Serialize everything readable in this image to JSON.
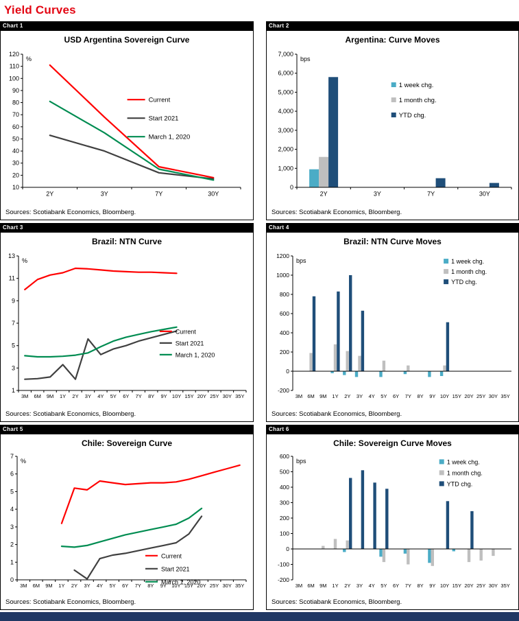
{
  "page_title": "Yield Curves",
  "title_color": "#E30613",
  "footer_color": "#203864",
  "charts": [
    {
      "tag": "Chart 1",
      "title": "USD Argentina Sovereign Curve",
      "source": "Sources: Scotiabank Economics, Bloomberg.",
      "chart_data": {
        "type": "line",
        "unit": "%",
        "categories": [
          "2Y",
          "3Y",
          "7Y",
          "30Y"
        ],
        "ylim": [
          10,
          120
        ],
        "ystep": 10,
        "legend_position": "middle-right",
        "series": [
          {
            "name": "Current",
            "color": "#FF0000",
            "values": [
              111,
              68,
              27,
              18
            ]
          },
          {
            "name": "Start 2021",
            "color": "#404040",
            "values": [
              53,
              40,
              22,
              17
            ]
          },
          {
            "name": "March 1, 2020",
            "color": "#008C51",
            "values": [
              81,
              55,
              25,
              16
            ]
          }
        ]
      }
    },
    {
      "tag": "Chart 2",
      "title": "Argentina: Curve Moves",
      "source": "Sources: Scotiabank Economics, Bloomberg.",
      "chart_data": {
        "type": "bar",
        "unit": "bps",
        "categories": [
          "2Y",
          "3Y",
          "7Y",
          "30Y"
        ],
        "ylim": [
          0,
          7000
        ],
        "ystep": 1000,
        "comma": true,
        "legend_position": "upper-right",
        "series": [
          {
            "name": "1 week chg.",
            "color": "#4BACC6",
            "values": [
              950,
              0,
              0,
              0
            ]
          },
          {
            "name": "1 month chg.",
            "color": "#BFBFBF",
            "values": [
              1600,
              0,
              0,
              0
            ]
          },
          {
            "name": "YTD chg.",
            "color": "#1F4E79",
            "values": [
              5800,
              0,
              480,
              230
            ]
          }
        ]
      }
    },
    {
      "tag": "Chart 3",
      "title": "Brazil: NTN Curve",
      "source": "Sources: Scotiabank Economics, Bloomberg.",
      "chart_data": {
        "type": "line",
        "unit": "%",
        "categories": [
          "3M",
          "6M",
          "9M",
          "1Y",
          "2Y",
          "3Y",
          "4Y",
          "5Y",
          "6Y",
          "7Y",
          "8Y",
          "9Y",
          "10Y",
          "15Y",
          "20Y",
          "25Y",
          "30Y",
          "35Y"
        ],
        "ylim": [
          1,
          13
        ],
        "ystep": 2,
        "legend_position": "middle-right",
        "series": [
          {
            "name": "Current",
            "color": "#FF0000",
            "values": [
              10.0,
              10.9,
              11.3,
              11.5,
              11.9,
              11.85,
              11.75,
              11.65,
              11.6,
              11.55,
              11.55,
              11.5,
              11.45,
              null,
              null,
              null,
              null,
              null
            ]
          },
          {
            "name": "Start 2021",
            "color": "#404040",
            "values": [
              2.0,
              2.05,
              2.2,
              3.3,
              2.0,
              5.6,
              4.2,
              4.7,
              5.0,
              5.4,
              5.7,
              6.0,
              6.3,
              null,
              null,
              null,
              null,
              null
            ]
          },
          {
            "name": "March 1, 2020",
            "color": "#008C51",
            "values": [
              4.1,
              4.0,
              4.0,
              4.05,
              4.15,
              4.35,
              4.9,
              5.4,
              5.75,
              6.0,
              6.25,
              6.45,
              6.65,
              null,
              null,
              null,
              null,
              null
            ]
          }
        ]
      }
    },
    {
      "tag": "Chart 4",
      "title": "Brazil: NTN Curve Moves",
      "source": "Sources: Scotiabank Economics, Bloomberg.",
      "chart_data": {
        "type": "bar",
        "unit": "bps",
        "categories": [
          "3M",
          "6M",
          "9M",
          "1Y",
          "2Y",
          "3Y",
          "4Y",
          "5Y",
          "6Y",
          "7Y",
          "8Y",
          "9Y",
          "10Y",
          "15Y",
          "20Y",
          "25Y",
          "30Y",
          "35Y"
        ],
        "ylim": [
          -200,
          1200
        ],
        "ystep": 200,
        "comma": false,
        "legend_position": "upper-right",
        "series": [
          {
            "name": "1 week chg.",
            "color": "#4BACC6",
            "values": [
              0,
              0,
              0,
              -20,
              -40,
              -60,
              0,
              -60,
              0,
              -30,
              0,
              -60,
              -50,
              0,
              0,
              0,
              0,
              0
            ]
          },
          {
            "name": "1 month chg.",
            "color": "#BFBFBF",
            "values": [
              0,
              190,
              0,
              280,
              210,
              160,
              0,
              110,
              0,
              60,
              0,
              0,
              60,
              0,
              0,
              0,
              0,
              0
            ]
          },
          {
            "name": "YTD chg.",
            "color": "#1F4E79",
            "values": [
              0,
              780,
              0,
              830,
              1000,
              630,
              0,
              0,
              0,
              0,
              0,
              0,
              510,
              0,
              0,
              0,
              0,
              0
            ]
          }
        ]
      }
    },
    {
      "tag": "Chart 5",
      "title": "Chile: Sovereign Curve",
      "source": "Sources: Scotiabank Economics, Bloomberg.",
      "chart_data": {
        "type": "line",
        "unit": "%",
        "categories": [
          "3M",
          "6M",
          "9M",
          "1Y",
          "2Y",
          "3Y",
          "4Y",
          "5Y",
          "6Y",
          "7Y",
          "8Y",
          "9Y",
          "10Y",
          "15Y",
          "20Y",
          "25Y",
          "30Y",
          "35Y"
        ],
        "ylim": [
          0,
          7
        ],
        "ystep": 1,
        "legend_position": "lower-right",
        "series": [
          {
            "name": "Current",
            "color": "#FF0000",
            "values": [
              null,
              null,
              null,
              3.2,
              5.2,
              5.1,
              5.6,
              5.5,
              5.4,
              5.45,
              5.5,
              5.5,
              5.55,
              5.7,
              5.9,
              6.1,
              6.3,
              6.5
            ]
          },
          {
            "name": "Start 2021",
            "color": "#404040",
            "values": [
              null,
              null,
              null,
              null,
              0.55,
              0.05,
              1.2,
              1.4,
              1.5,
              1.65,
              1.8,
              1.95,
              2.1,
              2.6,
              3.6,
              null,
              null,
              null
            ]
          },
          {
            "name": "March 1, 2020",
            "color": "#008C51",
            "values": [
              null,
              null,
              null,
              1.9,
              1.85,
              1.95,
              2.15,
              2.35,
              2.55,
              2.7,
              2.85,
              3.0,
              3.15,
              3.5,
              4.05,
              null,
              null,
              null
            ]
          }
        ]
      }
    },
    {
      "tag": "Chart 6",
      "title": "Chile: Sovereign Curve Moves",
      "source": "Sources: Scotiabank Economics, Bloomberg.",
      "chart_data": {
        "type": "bar",
        "unit": "bps",
        "categories": [
          "3M",
          "6M",
          "9M",
          "1Y",
          "2Y",
          "3Y",
          "4Y",
          "5Y",
          "6Y",
          "7Y",
          "8Y",
          "9Y",
          "10Y",
          "15Y",
          "20Y",
          "25Y",
          "30Y",
          "35Y"
        ],
        "ylim": [
          -200,
          600
        ],
        "ystep": 100,
        "comma": false,
        "legend_position": "upper-right",
        "series": [
          {
            "name": "1 week chg.",
            "color": "#4BACC6",
            "values": [
              0,
              0,
              0,
              0,
              -20,
              0,
              0,
              -50,
              0,
              -30,
              0,
              -90,
              0,
              -15,
              0,
              0,
              0,
              0
            ]
          },
          {
            "name": "1 month chg.",
            "color": "#BFBFBF",
            "values": [
              0,
              0,
              20,
              65,
              55,
              0,
              0,
              -85,
              0,
              -100,
              0,
              -110,
              0,
              0,
              -85,
              -75,
              -45,
              0
            ]
          },
          {
            "name": "YTD chg.",
            "color": "#1F4E79",
            "values": [
              0,
              0,
              0,
              0,
              460,
              510,
              430,
              390,
              0,
              0,
              0,
              0,
              310,
              0,
              245,
              0,
              0,
              0
            ]
          }
        ]
      }
    }
  ]
}
